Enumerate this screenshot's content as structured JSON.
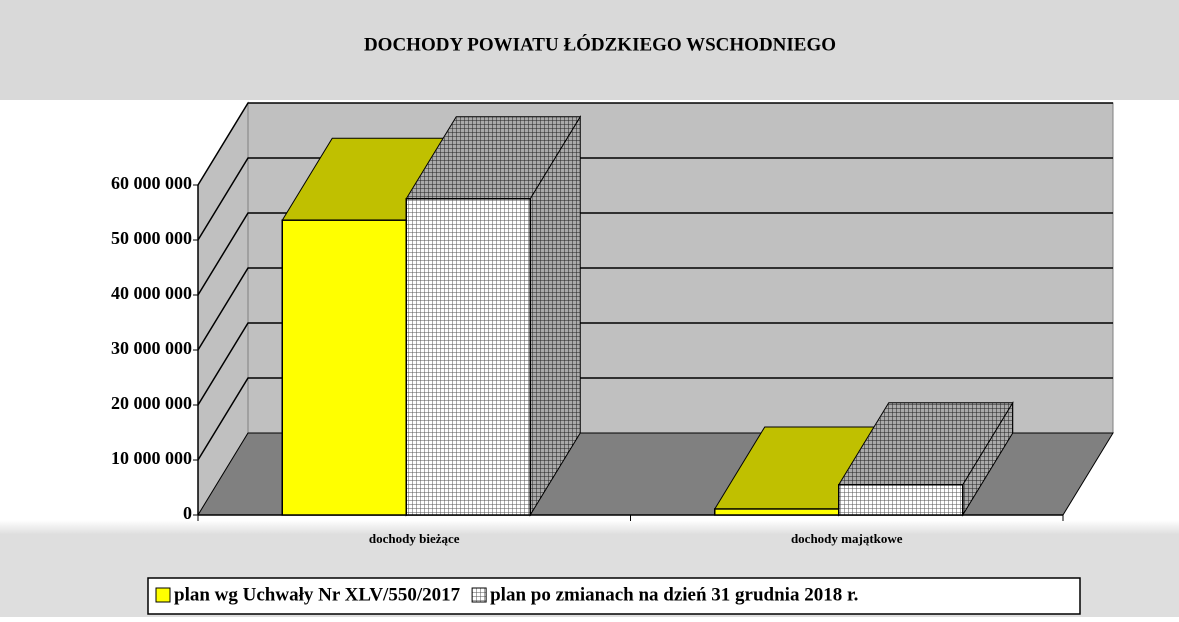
{
  "chart_data": {
    "type": "bar3d",
    "title": "DOCHODY POWIATU ŁÓDZKIEGO WSCHODNIEGO",
    "categories": [
      "dochody bieżące",
      "dochody majątkowe"
    ],
    "series": [
      {
        "name": "plan wg Uchwały Nr XLV/550/2017",
        "color": "#ffff00",
        "values": [
          53600000,
          1100000
        ]
      },
      {
        "name": "plan po zmianach na dzień 31 grudnia 2018 r.",
        "color": "#c0c0c0",
        "values": [
          57500000,
          5500000
        ]
      }
    ],
    "ylim": [
      0,
      60000000
    ],
    "yticks": [
      0,
      {
        "value": 10000000,
        "label": "10 000 000"
      },
      {
        "value": 20000000,
        "label": "20 000 000"
      },
      {
        "value": 30000000,
        "label": "30 000 000"
      },
      {
        "value": 40000000,
        "label": "40 000 000"
      },
      {
        "value": 50000000,
        "label": "50 000 000"
      },
      {
        "value": 60000000,
        "label": "60 000 000"
      }
    ],
    "grid": true,
    "legend": "bottom"
  }
}
